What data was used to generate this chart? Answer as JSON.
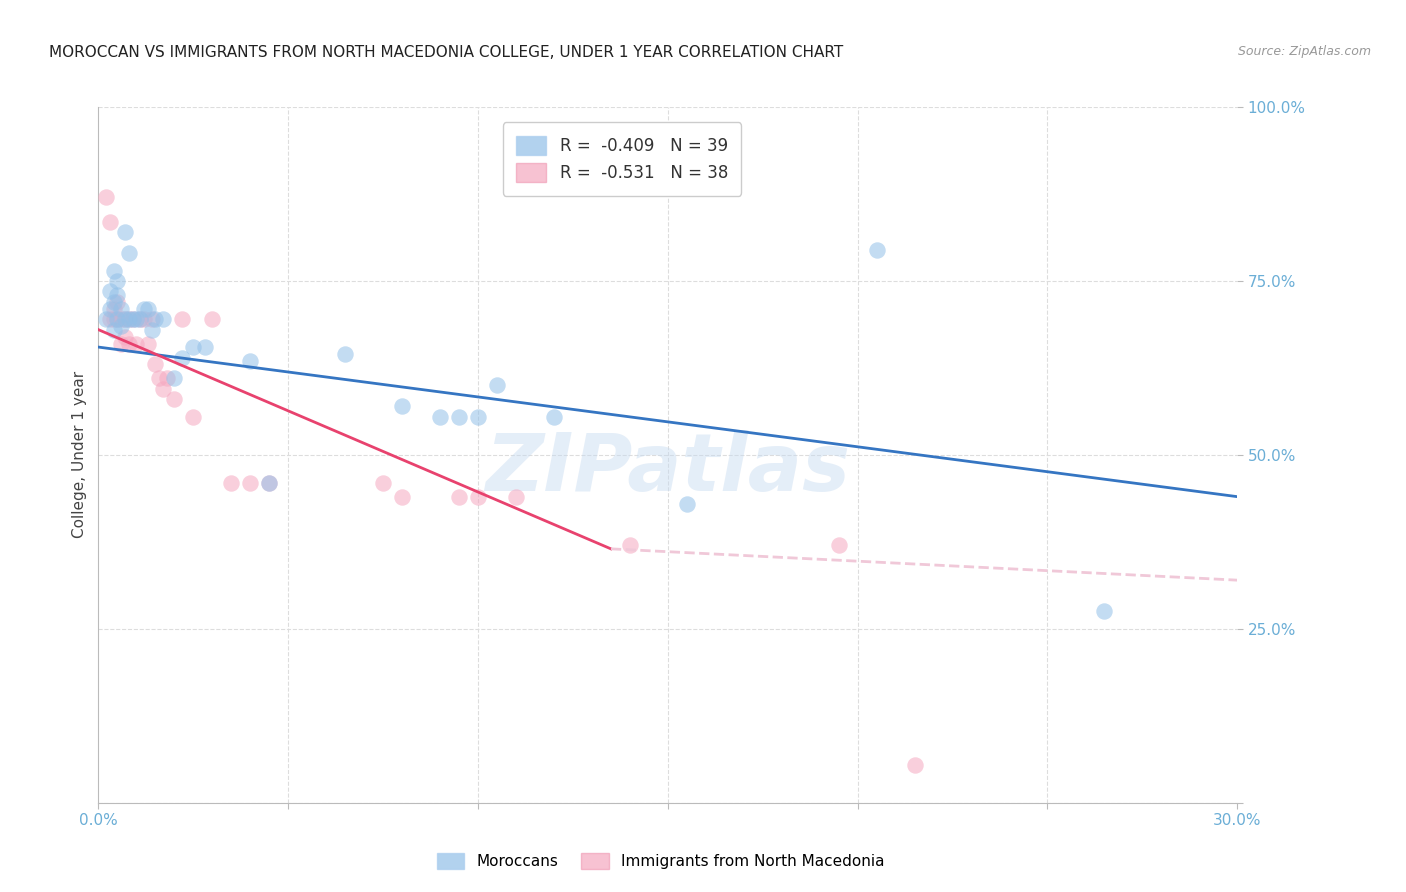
{
  "title": "MOROCCAN VS IMMIGRANTS FROM NORTH MACEDONIA COLLEGE, UNDER 1 YEAR CORRELATION CHART",
  "source": "Source: ZipAtlas.com",
  "ylabel": "College, Under 1 year",
  "x_min": 0.0,
  "x_max": 0.3,
  "y_min": 0.0,
  "y_max": 1.0,
  "blue_scatter": [
    [
      0.002,
      0.695
    ],
    [
      0.003,
      0.71
    ],
    [
      0.003,
      0.735
    ],
    [
      0.004,
      0.72
    ],
    [
      0.004,
      0.68
    ],
    [
      0.004,
      0.765
    ],
    [
      0.005,
      0.75
    ],
    [
      0.005,
      0.73
    ],
    [
      0.005,
      0.695
    ],
    [
      0.006,
      0.71
    ],
    [
      0.006,
      0.685
    ],
    [
      0.007,
      0.82
    ],
    [
      0.007,
      0.695
    ],
    [
      0.008,
      0.79
    ],
    [
      0.008,
      0.695
    ],
    [
      0.009,
      0.695
    ],
    [
      0.01,
      0.695
    ],
    [
      0.011,
      0.695
    ],
    [
      0.012,
      0.71
    ],
    [
      0.013,
      0.71
    ],
    [
      0.014,
      0.68
    ],
    [
      0.015,
      0.695
    ],
    [
      0.017,
      0.695
    ],
    [
      0.02,
      0.61
    ],
    [
      0.022,
      0.64
    ],
    [
      0.025,
      0.655
    ],
    [
      0.028,
      0.655
    ],
    [
      0.04,
      0.635
    ],
    [
      0.045,
      0.46
    ],
    [
      0.065,
      0.645
    ],
    [
      0.08,
      0.57
    ],
    [
      0.09,
      0.555
    ],
    [
      0.095,
      0.555
    ],
    [
      0.1,
      0.555
    ],
    [
      0.105,
      0.6
    ],
    [
      0.12,
      0.555
    ],
    [
      0.155,
      0.43
    ],
    [
      0.205,
      0.795
    ],
    [
      0.265,
      0.275
    ]
  ],
  "pink_scatter": [
    [
      0.002,
      0.87
    ],
    [
      0.003,
      0.835
    ],
    [
      0.003,
      0.695
    ],
    [
      0.004,
      0.71
    ],
    [
      0.004,
      0.695
    ],
    [
      0.005,
      0.695
    ],
    [
      0.005,
      0.72
    ],
    [
      0.006,
      0.695
    ],
    [
      0.006,
      0.66
    ],
    [
      0.007,
      0.695
    ],
    [
      0.007,
      0.67
    ],
    [
      0.008,
      0.695
    ],
    [
      0.008,
      0.66
    ],
    [
      0.009,
      0.695
    ],
    [
      0.01,
      0.66
    ],
    [
      0.011,
      0.695
    ],
    [
      0.012,
      0.695
    ],
    [
      0.013,
      0.66
    ],
    [
      0.014,
      0.695
    ],
    [
      0.015,
      0.63
    ],
    [
      0.016,
      0.61
    ],
    [
      0.017,
      0.595
    ],
    [
      0.018,
      0.61
    ],
    [
      0.02,
      0.58
    ],
    [
      0.022,
      0.695
    ],
    [
      0.025,
      0.555
    ],
    [
      0.03,
      0.695
    ],
    [
      0.035,
      0.46
    ],
    [
      0.04,
      0.46
    ],
    [
      0.045,
      0.46
    ],
    [
      0.075,
      0.46
    ],
    [
      0.08,
      0.44
    ],
    [
      0.095,
      0.44
    ],
    [
      0.1,
      0.44
    ],
    [
      0.11,
      0.44
    ],
    [
      0.14,
      0.37
    ],
    [
      0.195,
      0.37
    ],
    [
      0.215,
      0.055
    ]
  ],
  "blue_line": {
    "x0": 0.0,
    "y0": 0.655,
    "x1": 0.3,
    "y1": 0.44
  },
  "pink_line_solid": {
    "x0": 0.0,
    "y0": 0.68,
    "x1": 0.135,
    "y1": 0.365
  },
  "pink_line_dashed": {
    "x0": 0.135,
    "y0": 0.365,
    "x1": 0.3,
    "y1": 0.32
  },
  "blue_color": "#92c0e8",
  "pink_color": "#f5a8c0",
  "blue_line_color": "#3575c2",
  "pink_line_color": "#e8426e",
  "pink_dashed_color": "#f0c8d8",
  "background_color": "#ffffff",
  "title_fontsize": 11,
  "source_fontsize": 9,
  "axis_label_color": "#6baed6",
  "grid_color": "#dddddd",
  "legend_blue_label": "R =  -0.409   N = 39",
  "legend_pink_label": "R =  -0.531   N = 38",
  "legend_blue_color": "#92c0e8",
  "legend_pink_color": "#f5a8c0",
  "watermark": "ZIPatlas"
}
